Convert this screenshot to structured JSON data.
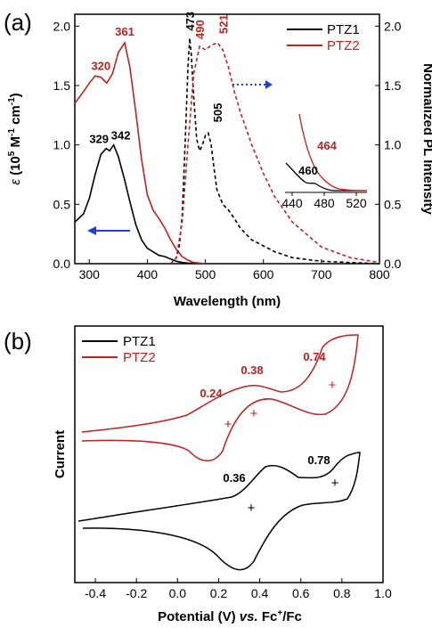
{
  "colors": {
    "ptz1": "#000000",
    "ptz2": "#c0201e",
    "arrow": "#1f3fd8"
  },
  "chart_data": [
    {
      "panel": "(a)",
      "type": "line",
      "xlabel": "Wavelength (nm)",
      "ylabel_left_prefix": "ε",
      "ylabel_left_rest": " (10",
      "ylabel_left_sup1": "5",
      "ylabel_left_mid": " M",
      "ylabel_left_sup2": "-1",
      "ylabel_left_end": " cm",
      "ylabel_left_sup3": "-1",
      "ylabel_left_close": ")",
      "ylabel_right": "Normalized PL Intensity",
      "xlim": [
        275,
        800
      ],
      "ylim_left": [
        0,
        2.1
      ],
      "ylim_right": [
        0,
        2.1
      ],
      "xticks": [
        "300",
        "400",
        "500",
        "600",
        "700",
        "800"
      ],
      "yticks_left": [
        "0.0",
        "0.5",
        "1.0",
        "1.5",
        "2.0"
      ],
      "yticks_right": [
        "0.0",
        "0.5",
        "1.0",
        "1.5",
        "2.0"
      ],
      "legend": [
        "PTZ1",
        "PTZ2"
      ],
      "series": [
        {
          "name": "PTZ1",
          "style": "solid",
          "axis": "left",
          "x": [
            275,
            290,
            300,
            310,
            320,
            329,
            335,
            342,
            350,
            360,
            370,
            380,
            390,
            400,
            410,
            420,
            430,
            440,
            450,
            460,
            470,
            480,
            500
          ],
          "y": [
            0.35,
            0.42,
            0.55,
            0.75,
            0.92,
            0.97,
            0.95,
            1.0,
            0.9,
            0.72,
            0.52,
            0.33,
            0.2,
            0.13,
            0.1,
            0.07,
            0.06,
            0.04,
            0.02,
            0.01,
            0.005,
            0.002,
            0.0
          ]
        },
        {
          "name": "PTZ2",
          "style": "solid",
          "axis": "left",
          "x": [
            275,
            290,
            300,
            310,
            320,
            330,
            340,
            350,
            361,
            370,
            380,
            390,
            400,
            410,
            420,
            430,
            440,
            450,
            460,
            470,
            480,
            500
          ],
          "y": [
            1.35,
            1.45,
            1.52,
            1.58,
            1.57,
            1.52,
            1.6,
            1.78,
            1.86,
            1.65,
            1.28,
            0.88,
            0.58,
            0.45,
            0.38,
            0.3,
            0.2,
            0.12,
            0.06,
            0.03,
            0.01,
            0.0
          ]
        },
        {
          "name": "PTZ1",
          "style": "dashed",
          "axis": "right",
          "x": [
            440,
            450,
            455,
            460,
            465,
            470,
            473,
            476,
            480,
            485,
            490,
            495,
            500,
            505,
            510,
            515,
            520,
            530,
            540,
            550,
            560,
            580,
            600,
            620,
            650,
            700,
            750,
            800
          ],
          "y": [
            0.0,
            0.05,
            0.15,
            0.4,
            1.0,
            1.65,
            1.9,
            1.75,
            1.4,
            1.05,
            0.95,
            1.0,
            1.08,
            1.1,
            1.0,
            0.8,
            0.62,
            0.5,
            0.45,
            0.38,
            0.3,
            0.2,
            0.15,
            0.1,
            0.05,
            0.02,
            0.01,
            0.0
          ]
        },
        {
          "name": "PTZ2",
          "style": "dashed",
          "axis": "right",
          "x": [
            440,
            450,
            460,
            470,
            480,
            490,
            500,
            510,
            521,
            530,
            540,
            550,
            560,
            580,
            600,
            620,
            650,
            700,
            750,
            800
          ],
          "y": [
            0.0,
            0.05,
            0.35,
            1.0,
            1.6,
            1.83,
            1.8,
            1.84,
            1.86,
            1.8,
            1.65,
            1.45,
            1.28,
            1.0,
            0.76,
            0.56,
            0.35,
            0.14,
            0.05,
            0.01
          ]
        }
      ],
      "annotations": [
        {
          "text": "320",
          "series": "PTZ2",
          "x": 320,
          "y": 1.57
        },
        {
          "text": "361",
          "series": "PTZ2",
          "x": 361,
          "y": 1.86
        },
        {
          "text": "329",
          "series": "PTZ1",
          "x": 329,
          "y": 0.97
        },
        {
          "text": "342",
          "series": "PTZ1",
          "x": 342,
          "y": 1.0
        },
        {
          "text": "473",
          "series": "PTZ1",
          "x": 473,
          "y": 1.9
        },
        {
          "text": "490",
          "series": "PTZ2",
          "x": 490,
          "y": 1.83
        },
        {
          "text": "521",
          "series": "PTZ2",
          "x": 521,
          "y": 1.86
        },
        {
          "text": "505",
          "series": "PTZ1",
          "x": 505,
          "y": 1.1
        }
      ],
      "inset": {
        "xticks": [
          "440",
          "480",
          "520"
        ],
        "xlim": [
          425,
          530
        ],
        "annotations": [
          {
            "text": "460",
            "series": "PTZ1"
          },
          {
            "text": "464",
            "series": "PTZ2"
          }
        ]
      }
    },
    {
      "panel": "(b)",
      "type": "line",
      "xlabel_pre": "Potential (V) ",
      "xlabel_ital": "vs.",
      "xlabel_mid": " Fc",
      "xlabel_sup": "+",
      "xlabel_end": "/Fc",
      "ylabel": "Current",
      "xlim": [
        -0.5,
        1.0
      ],
      "xticks": [
        "-0.4",
        "-0.2",
        "0.0",
        "0.2",
        "0.4",
        "0.6",
        "0.8",
        "1.0"
      ],
      "legend": [
        "PTZ1",
        "PTZ2"
      ],
      "series": [
        {
          "name": "PTZ1",
          "label_values": [
            "0.36",
            "0.78"
          ],
          "marker_x": [
            0.35,
            0.76
          ]
        },
        {
          "name": "PTZ2",
          "label_values": [
            "0.24",
            "0.38",
            "0.74"
          ],
          "marker_x": [
            0.24,
            0.36,
            0.75
          ]
        }
      ]
    }
  ]
}
